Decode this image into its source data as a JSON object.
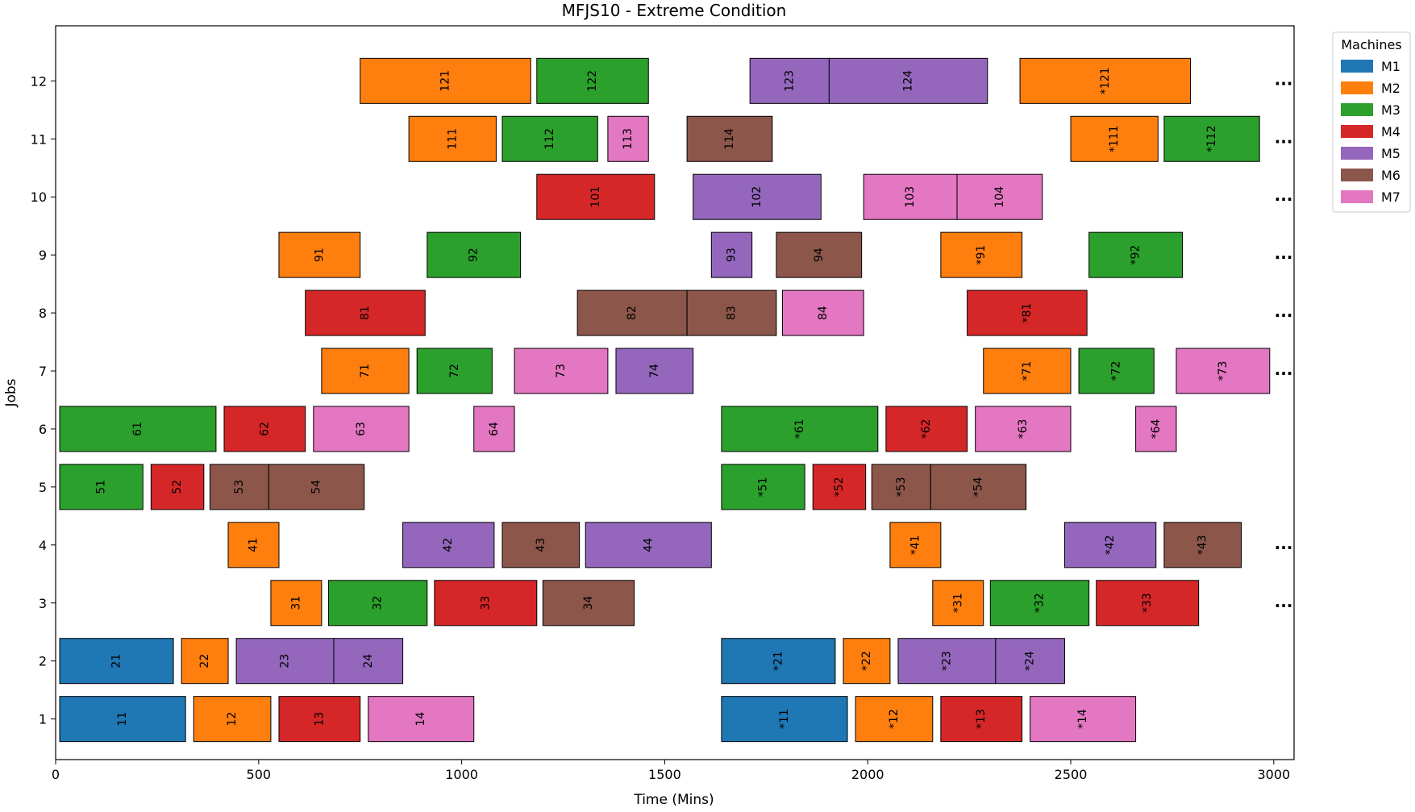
{
  "chart_data": {
    "type": "gantt",
    "title": "MFJS10 - Extreme Condition",
    "xlabel": "Time (Mins)",
    "ylabel": "Jobs",
    "xlim": [
      0,
      3050
    ],
    "ylim": [
      0.3,
      12.95
    ],
    "xticks": [
      0,
      500,
      1000,
      1500,
      2000,
      2500,
      3000
    ],
    "yticks": [
      1,
      2,
      3,
      4,
      5,
      6,
      7,
      8,
      9,
      10,
      11,
      12
    ],
    "grid": false,
    "legend_title": "Machines",
    "legend_position": "top-right",
    "machines": [
      {
        "name": "M1",
        "color": "#1f77b4"
      },
      {
        "name": "M2",
        "color": "#ff7f0e"
      },
      {
        "name": "M3",
        "color": "#2ca02c"
      },
      {
        "name": "M4",
        "color": "#d62728"
      },
      {
        "name": "M5",
        "color": "#9467bd"
      },
      {
        "name": "M6",
        "color": "#8c564b"
      },
      {
        "name": "M7",
        "color": "#e377c2"
      }
    ],
    "continuation_marker": "...",
    "continued_jobs": [
      3,
      4,
      7,
      8,
      9,
      10,
      11,
      12
    ],
    "operations": [
      {
        "job": 1,
        "label": "11",
        "machine": "M1",
        "start": 10,
        "end": 320
      },
      {
        "job": 1,
        "label": "12",
        "machine": "M2",
        "start": 340,
        "end": 530
      },
      {
        "job": 1,
        "label": "13",
        "machine": "M4",
        "start": 550,
        "end": 750
      },
      {
        "job": 1,
        "label": "14",
        "machine": "M7",
        "start": 770,
        "end": 1030
      },
      {
        "job": 1,
        "label": "*11",
        "machine": "M1",
        "start": 1640,
        "end": 1950
      },
      {
        "job": 1,
        "label": "*12",
        "machine": "M2",
        "start": 1970,
        "end": 2160
      },
      {
        "job": 1,
        "label": "*13",
        "machine": "M4",
        "start": 2180,
        "end": 2380
      },
      {
        "job": 1,
        "label": "*14",
        "machine": "M7",
        "start": 2400,
        "end": 2660
      },
      {
        "job": 2,
        "label": "21",
        "machine": "M1",
        "start": 10,
        "end": 290
      },
      {
        "job": 2,
        "label": "22",
        "machine": "M2",
        "start": 310,
        "end": 425
      },
      {
        "job": 2,
        "label": "23",
        "machine": "M5",
        "start": 445,
        "end": 685
      },
      {
        "job": 2,
        "label": "24",
        "machine": "M5",
        "start": 685,
        "end": 855
      },
      {
        "job": 2,
        "label": "*21",
        "machine": "M1",
        "start": 1640,
        "end": 1920
      },
      {
        "job": 2,
        "label": "*22",
        "machine": "M2",
        "start": 1940,
        "end": 2055
      },
      {
        "job": 2,
        "label": "*23",
        "machine": "M5",
        "start": 2075,
        "end": 2315
      },
      {
        "job": 2,
        "label": "*24",
        "machine": "M5",
        "start": 2315,
        "end": 2485
      },
      {
        "job": 3,
        "label": "31",
        "machine": "M2",
        "start": 530,
        "end": 655
      },
      {
        "job": 3,
        "label": "32",
        "machine": "M3",
        "start": 672,
        "end": 915
      },
      {
        "job": 3,
        "label": "33",
        "machine": "M4",
        "start": 933,
        "end": 1185
      },
      {
        "job": 3,
        "label": "34",
        "machine": "M6",
        "start": 1200,
        "end": 1425
      },
      {
        "job": 3,
        "label": "*31",
        "machine": "M2",
        "start": 2160,
        "end": 2285
      },
      {
        "job": 3,
        "label": "*32",
        "machine": "M3",
        "start": 2302,
        "end": 2545
      },
      {
        "job": 3,
        "label": "*33",
        "machine": "M4",
        "start": 2563,
        "end": 2815
      },
      {
        "job": 4,
        "label": "41",
        "machine": "M2",
        "start": 425,
        "end": 550
      },
      {
        "job": 4,
        "label": "42",
        "machine": "M5",
        "start": 855,
        "end": 1080
      },
      {
        "job": 4,
        "label": "43",
        "machine": "M6",
        "start": 1100,
        "end": 1290
      },
      {
        "job": 4,
        "label": "44",
        "machine": "M5",
        "start": 1305,
        "end": 1615
      },
      {
        "job": 4,
        "label": "*41",
        "machine": "M2",
        "start": 2055,
        "end": 2180
      },
      {
        "job": 4,
        "label": "*42",
        "machine": "M5",
        "start": 2485,
        "end": 2710
      },
      {
        "job": 4,
        "label": "*43",
        "machine": "M6",
        "start": 2730,
        "end": 2920
      },
      {
        "job": 5,
        "label": "51",
        "machine": "M3",
        "start": 10,
        "end": 215
      },
      {
        "job": 5,
        "label": "52",
        "machine": "M4",
        "start": 235,
        "end": 365
      },
      {
        "job": 5,
        "label": "53",
        "machine": "M6",
        "start": 380,
        "end": 525
      },
      {
        "job": 5,
        "label": "54",
        "machine": "M6",
        "start": 525,
        "end": 760
      },
      {
        "job": 5,
        "label": "*51",
        "machine": "M3",
        "start": 1640,
        "end": 1845
      },
      {
        "job": 5,
        "label": "*52",
        "machine": "M4",
        "start": 1865,
        "end": 1995
      },
      {
        "job": 5,
        "label": "*53",
        "machine": "M6",
        "start": 2010,
        "end": 2155
      },
      {
        "job": 5,
        "label": "*54",
        "machine": "M6",
        "start": 2155,
        "end": 2390
      },
      {
        "job": 6,
        "label": "61",
        "machine": "M3",
        "start": 10,
        "end": 395
      },
      {
        "job": 6,
        "label": "62",
        "machine": "M4",
        "start": 415,
        "end": 615
      },
      {
        "job": 6,
        "label": "63",
        "machine": "M7",
        "start": 635,
        "end": 870
      },
      {
        "job": 6,
        "label": "64",
        "machine": "M7",
        "start": 1030,
        "end": 1130
      },
      {
        "job": 6,
        "label": "*61",
        "machine": "M3",
        "start": 1640,
        "end": 2025
      },
      {
        "job": 6,
        "label": "*62",
        "machine": "M4",
        "start": 2045,
        "end": 2245
      },
      {
        "job": 6,
        "label": "*63",
        "machine": "M7",
        "start": 2265,
        "end": 2500
      },
      {
        "job": 6,
        "label": "*64",
        "machine": "M7",
        "start": 2660,
        "end": 2760
      },
      {
        "job": 7,
        "label": "71",
        "machine": "M2",
        "start": 655,
        "end": 870
      },
      {
        "job": 7,
        "label": "72",
        "machine": "M3",
        "start": 890,
        "end": 1075
      },
      {
        "job": 7,
        "label": "73",
        "machine": "M7",
        "start": 1130,
        "end": 1360
      },
      {
        "job": 7,
        "label": "74",
        "machine": "M5",
        "start": 1380,
        "end": 1570
      },
      {
        "job": 7,
        "label": "*71",
        "machine": "M2",
        "start": 2285,
        "end": 2500
      },
      {
        "job": 7,
        "label": "*72",
        "machine": "M3",
        "start": 2520,
        "end": 2705
      },
      {
        "job": 7,
        "label": "*73",
        "machine": "M7",
        "start": 2760,
        "end": 2990
      },
      {
        "job": 8,
        "label": "81",
        "machine": "M4",
        "start": 615,
        "end": 910
      },
      {
        "job": 8,
        "label": "82",
        "machine": "M6",
        "start": 1285,
        "end": 1555
      },
      {
        "job": 8,
        "label": "83",
        "machine": "M6",
        "start": 1555,
        "end": 1775
      },
      {
        "job": 8,
        "label": "84",
        "machine": "M7",
        "start": 1790,
        "end": 1990
      },
      {
        "job": 8,
        "label": "*81",
        "machine": "M4",
        "start": 2245,
        "end": 2540
      },
      {
        "job": 9,
        "label": "91",
        "machine": "M2",
        "start": 550,
        "end": 750
      },
      {
        "job": 9,
        "label": "92",
        "machine": "M3",
        "start": 915,
        "end": 1145
      },
      {
        "job": 9,
        "label": "93",
        "machine": "M5",
        "start": 1615,
        "end": 1715
      },
      {
        "job": 9,
        "label": "94",
        "machine": "M6",
        "start": 1775,
        "end": 1985
      },
      {
        "job": 9,
        "label": "*91",
        "machine": "M2",
        "start": 2180,
        "end": 2380
      },
      {
        "job": 9,
        "label": "*92",
        "machine": "M3",
        "start": 2545,
        "end": 2775
      },
      {
        "job": 10,
        "label": "101",
        "machine": "M4",
        "start": 1185,
        "end": 1475
      },
      {
        "job": 10,
        "label": "102",
        "machine": "M5",
        "start": 1570,
        "end": 1885
      },
      {
        "job": 10,
        "label": "103",
        "machine": "M7",
        "start": 1990,
        "end": 2220
      },
      {
        "job": 10,
        "label": "104",
        "machine": "M7",
        "start": 2220,
        "end": 2430
      },
      {
        "job": 11,
        "label": "111",
        "machine": "M2",
        "start": 870,
        "end": 1085
      },
      {
        "job": 11,
        "label": "112",
        "machine": "M3",
        "start": 1100,
        "end": 1335
      },
      {
        "job": 11,
        "label": "113",
        "machine": "M7",
        "start": 1360,
        "end": 1460
      },
      {
        "job": 11,
        "label": "114",
        "machine": "M6",
        "start": 1555,
        "end": 1765
      },
      {
        "job": 11,
        "label": "*111",
        "machine": "M2",
        "start": 2500,
        "end": 2715
      },
      {
        "job": 11,
        "label": "*112",
        "machine": "M3",
        "start": 2730,
        "end": 2965
      },
      {
        "job": 12,
        "label": "121",
        "machine": "M2",
        "start": 750,
        "end": 1170
      },
      {
        "job": 12,
        "label": "122",
        "machine": "M3",
        "start": 1185,
        "end": 1460
      },
      {
        "job": 12,
        "label": "123",
        "machine": "M5",
        "start": 1710,
        "end": 1905
      },
      {
        "job": 12,
        "label": "124",
        "machine": "M5",
        "start": 1905,
        "end": 2295
      },
      {
        "job": 12,
        "label": "*121",
        "machine": "M2",
        "start": 2375,
        "end": 2795
      }
    ]
  }
}
